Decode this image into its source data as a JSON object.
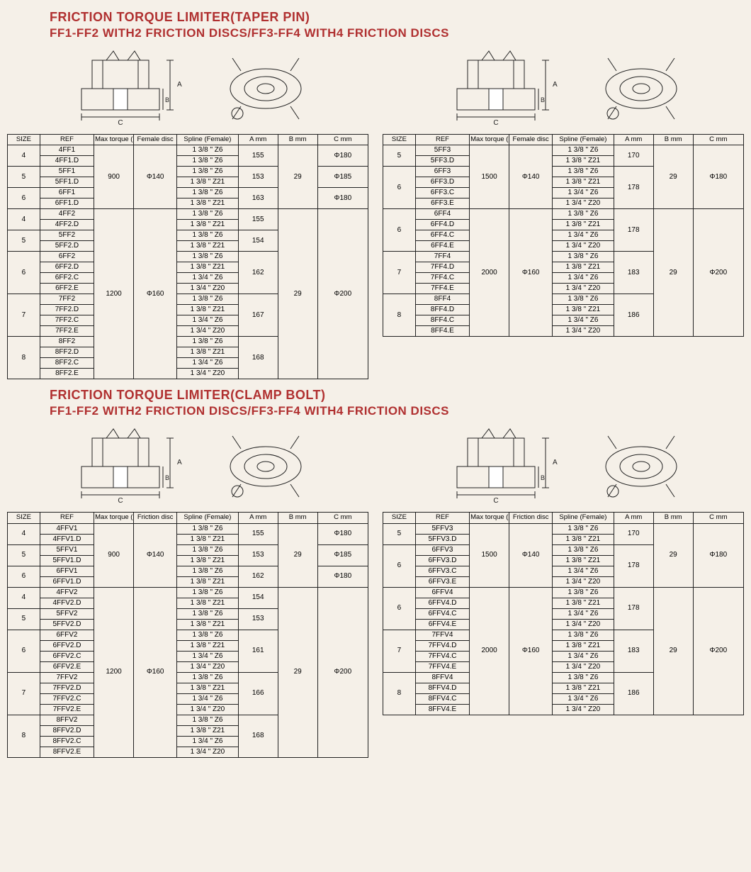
{
  "colors": {
    "title": "#b03030",
    "border": "#222222",
    "background": "#f5f0e8"
  },
  "section1": {
    "title": "FRICTION TORQUE LIMITER(TAPER PIN)",
    "subtitle": "FF1-FF2 WITH2 FRICTION DISCS/FF3-FF4 WITH4 FRICTION DISCS",
    "columns_left": [
      "SIZE",
      "REF",
      "Max torque ( Nm )",
      "Female disc",
      "Spline (Female)",
      "A mm",
      "B mm",
      "C mm"
    ],
    "columns_right": [
      "SIZE",
      "REF",
      "Max torque ( Nm )",
      "Female disc",
      "Spline (Female)",
      "A mm",
      "B mm",
      "C mm"
    ],
    "left": {
      "groups": [
        {
          "torque": "900",
          "disc": "Φ140",
          "b": "29",
          "sizes": [
            {
              "size": "4",
              "a": "155",
              "c": "Φ180",
              "rows": [
                [
                  "4FF1",
                  "1 3/8 \" Z6"
                ],
                [
                  "4FF1.D",
                  "1 3/8 \" Z6"
                ]
              ]
            },
            {
              "size": "5",
              "a": "153",
              "c": "Φ185",
              "rows": [
                [
                  "5FF1",
                  "1 3/8 \" Z6"
                ],
                [
                  "5FF1.D",
                  "1 3/8 \" Z21"
                ]
              ]
            },
            {
              "size": "6",
              "a": "163",
              "c": "Φ180",
              "rows": [
                [
                  "6FF1",
                  "1 3/8 \" Z6"
                ],
                [
                  "6FF1.D",
                  "1 3/8 \" Z21"
                ]
              ]
            }
          ]
        },
        {
          "torque": "1200",
          "disc": "Φ160",
          "b": "29",
          "c": "Φ200",
          "sizes": [
            {
              "size": "4",
              "a": "155",
              "rows": [
                [
                  "4FF2",
                  "1 3/8 \" Z6"
                ],
                [
                  "4FF2.D",
                  "1 3/8 \" Z21"
                ]
              ]
            },
            {
              "size": "5",
              "a": "154",
              "rows": [
                [
                  "5FF2",
                  "1 3/8 \" Z6"
                ],
                [
                  "5FF2.D",
                  "1 3/8 \" Z21"
                ]
              ]
            },
            {
              "size": "6",
              "a": "162",
              "rows": [
                [
                  "6FF2",
                  "1 3/8 \" Z6"
                ],
                [
                  "6FF2.D",
                  "1 3/8 \" Z21"
                ],
                [
                  "6FF2.C",
                  "1 3/4 \" Z6"
                ],
                [
                  "6FF2.E",
                  "1 3/4 \" Z20"
                ]
              ]
            },
            {
              "size": "7",
              "a": "167",
              "rows": [
                [
                  "7FF2",
                  "1 3/8 \" Z6"
                ],
                [
                  "7FF2.D",
                  "1 3/8 \" Z21"
                ],
                [
                  "7FF2.C",
                  "1 3/4 \" Z6"
                ],
                [
                  "7FF2.E",
                  "1 3/4 \" Z20"
                ]
              ]
            },
            {
              "size": "8",
              "a": "168",
              "rows": [
                [
                  "8FF2",
                  "1 3/8 \" Z6"
                ],
                [
                  "8FF2.D",
                  "1 3/8 \" Z21"
                ],
                [
                  "8FF2.C",
                  "1 3/4 \" Z6"
                ],
                [
                  "8FF2.E",
                  "1 3/4 \" Z20"
                ]
              ]
            }
          ]
        }
      ]
    },
    "right": {
      "groups": [
        {
          "torque": "1500",
          "disc": "Φ140",
          "b": "29",
          "c": "Φ180",
          "sizes": [
            {
              "size": "5",
              "a": "170",
              "rows": [
                [
                  "5FF3",
                  "1 3/8 \" Z6"
                ],
                [
                  "5FF3.D",
                  "1 3/8 \" Z21"
                ]
              ]
            },
            {
              "size": "6",
              "a": "178",
              "rows": [
                [
                  "6FF3",
                  "1 3/8 \" Z6"
                ],
                [
                  "6FF3.D",
                  "1 3/8 \" Z21"
                ],
                [
                  "6FF3.C",
                  "1 3/4 \" Z6"
                ],
                [
                  "6FF3.E",
                  "1 3/4 \" Z20"
                ]
              ]
            }
          ]
        },
        {
          "torque": "2000",
          "disc": "Φ160",
          "b": "29",
          "c": "Φ200",
          "sizes": [
            {
              "size": "6",
              "a": "178",
              "rows": [
                [
                  "6FF4",
                  "1 3/8 \" Z6"
                ],
                [
                  "6FF4.D",
                  "1 3/8 \" Z21"
                ],
                [
                  "6FF4.C",
                  "1 3/4 \" Z6"
                ],
                [
                  "6FF4.E",
                  "1 3/4 \" Z20"
                ]
              ]
            },
            {
              "size": "7",
              "a": "183",
              "rows": [
                [
                  "7FF4",
                  "1 3/8 \" Z6"
                ],
                [
                  "7FF4.D",
                  "1 3/8 \" Z21"
                ],
                [
                  "7FF4.C",
                  "1 3/4 \" Z6"
                ],
                [
                  "7FF4.E",
                  "1 3/4 \" Z20"
                ]
              ]
            },
            {
              "size": "8",
              "a": "186",
              "rows": [
                [
                  "8FF4",
                  "1 3/8 \" Z6"
                ],
                [
                  "8FF4.D",
                  "1 3/8 \" Z21"
                ],
                [
                  "8FF4.C",
                  "1 3/4 \" Z6"
                ],
                [
                  "8FF4.E",
                  "1 3/4 \" Z20"
                ]
              ]
            }
          ]
        }
      ]
    }
  },
  "section2": {
    "title": "FRICTION TORQUE LIMITER(CLAMP BOLT)",
    "subtitle": "FF1-FF2 WITH2 FRICTION DISCS/FF3-FF4 WITH4 FRICTION DISCS",
    "columns_left": [
      "SIZE",
      "REF",
      "Max torque ( Nm )",
      "Friction disc",
      "Spline (Female)",
      "A mm",
      "B mm",
      "C mm"
    ],
    "columns_right": [
      "SIZE",
      "REF",
      "Max torque ( Nm )",
      "Friction disc",
      "Spline (Female)",
      "A mm",
      "B mm",
      "C mm"
    ],
    "left": {
      "groups": [
        {
          "torque": "900",
          "disc": "Φ140",
          "b": "29",
          "sizes": [
            {
              "size": "4",
              "a": "155",
              "c": "Φ180",
              "rows": [
                [
                  "4FFV1",
                  "1 3/8 \" Z6"
                ],
                [
                  "4FFV1.D",
                  "1 3/8 \" Z21"
                ]
              ]
            },
            {
              "size": "5",
              "a": "153",
              "c": "Φ185",
              "rows": [
                [
                  "5FFV1",
                  "1 3/8 \" Z6"
                ],
                [
                  "5FFV1.D",
                  "1 3/8 \" Z21"
                ]
              ]
            },
            {
              "size": "6",
              "a": "162",
              "c": "Φ180",
              "rows": [
                [
                  "6FFV1",
                  "1 3/8 \" Z6"
                ],
                [
                  "6FFV1.D",
                  "1 3/8 \" Z21"
                ]
              ]
            }
          ]
        },
        {
          "torque": "1200",
          "disc": "Φ160",
          "b": "29",
          "c": "Φ200",
          "sizes": [
            {
              "size": "4",
              "a": "154",
              "rows": [
                [
                  "4FFV2",
                  "1 3/8 \" Z6"
                ],
                [
                  "4FFV2.D",
                  "1 3/8 \" Z21"
                ]
              ]
            },
            {
              "size": "5",
              "a": "153",
              "rows": [
                [
                  "5FFV2",
                  "1 3/8 \" Z6"
                ],
                [
                  "5FFV2.D",
                  "1 3/8 \" Z21"
                ]
              ]
            },
            {
              "size": "6",
              "a": "161",
              "rows": [
                [
                  "6FFV2",
                  "1 3/8 \" Z6"
                ],
                [
                  "6FFV2.D",
                  "1 3/8 \" Z21"
                ],
                [
                  "6FFV2.C",
                  "1 3/4 \" Z6"
                ],
                [
                  "6FFV2.E",
                  "1 3/4 \" Z20"
                ]
              ]
            },
            {
              "size": "7",
              "a": "166",
              "rows": [
                [
                  "7FFV2",
                  "1 3/8 \" Z6"
                ],
                [
                  "7FFV2.D",
                  "1 3/8 \" Z21"
                ],
                [
                  "7FFV2.C",
                  "1 3/4 \" Z6"
                ],
                [
                  "7FFV2.E",
                  "1 3/4 \" Z20"
                ]
              ]
            },
            {
              "size": "8",
              "a": "168",
              "rows": [
                [
                  "8FFV2",
                  "1 3/8 \" Z6"
                ],
                [
                  "8FFV2.D",
                  "1 3/8 \" Z21"
                ],
                [
                  "8FFV2.C",
                  "1 3/4 \" Z6"
                ],
                [
                  "8FFV2.E",
                  "1 3/4 \" Z20"
                ]
              ]
            }
          ]
        }
      ]
    },
    "right": {
      "groups": [
        {
          "torque": "1500",
          "disc": "Φ140",
          "b": "29",
          "c": "Φ180",
          "sizes": [
            {
              "size": "5",
              "a": "170",
              "rows": [
                [
                  "5FFV3",
                  "1 3/8 \" Z6"
                ],
                [
                  "5FFV3.D",
                  "1 3/8 \" Z21"
                ]
              ]
            },
            {
              "size": "6",
              "a": "178",
              "rows": [
                [
                  "6FFV3",
                  "1 3/8 \" Z6"
                ],
                [
                  "6FFV3.D",
                  "1 3/8 \" Z21"
                ],
                [
                  "6FFV3.C",
                  "1 3/4 \" Z6"
                ],
                [
                  "6FFV3.E",
                  "1 3/4 \" Z20"
                ]
              ]
            }
          ]
        },
        {
          "torque": "2000",
          "disc": "Φ160",
          "b": "29",
          "c": "Φ200",
          "sizes": [
            {
              "size": "6",
              "a": "178",
              "rows": [
                [
                  "6FFV4",
                  "1 3/8 \" Z6"
                ],
                [
                  "6FFV4.D",
                  "1 3/8 \" Z21"
                ],
                [
                  "6FFV4.C",
                  "1 3/4 \" Z6"
                ],
                [
                  "6FFV4.E",
                  "1 3/4 \" Z20"
                ]
              ]
            },
            {
              "size": "7",
              "a": "183",
              "rows": [
                [
                  "7FFV4",
                  "1 3/8 \" Z6"
                ],
                [
                  "7FFV4.D",
                  "1 3/8 \" Z21"
                ],
                [
                  "7FFV4.C",
                  "1 3/4 \" Z6"
                ],
                [
                  "7FFV4.E",
                  "1 3/4 \" Z20"
                ]
              ]
            },
            {
              "size": "8",
              "a": "186",
              "rows": [
                [
                  "8FFV4",
                  "1 3/8 \" Z6"
                ],
                [
                  "8FFV4.D",
                  "1 3/8 \" Z21"
                ],
                [
                  "8FFV4.C",
                  "1 3/4 \" Z6"
                ],
                [
                  "8FFV4.E",
                  "1 3/4 \" Z20"
                ]
              ]
            }
          ]
        }
      ]
    }
  },
  "diagram_labels": {
    "a": "A",
    "b": "B",
    "c": "C"
  }
}
